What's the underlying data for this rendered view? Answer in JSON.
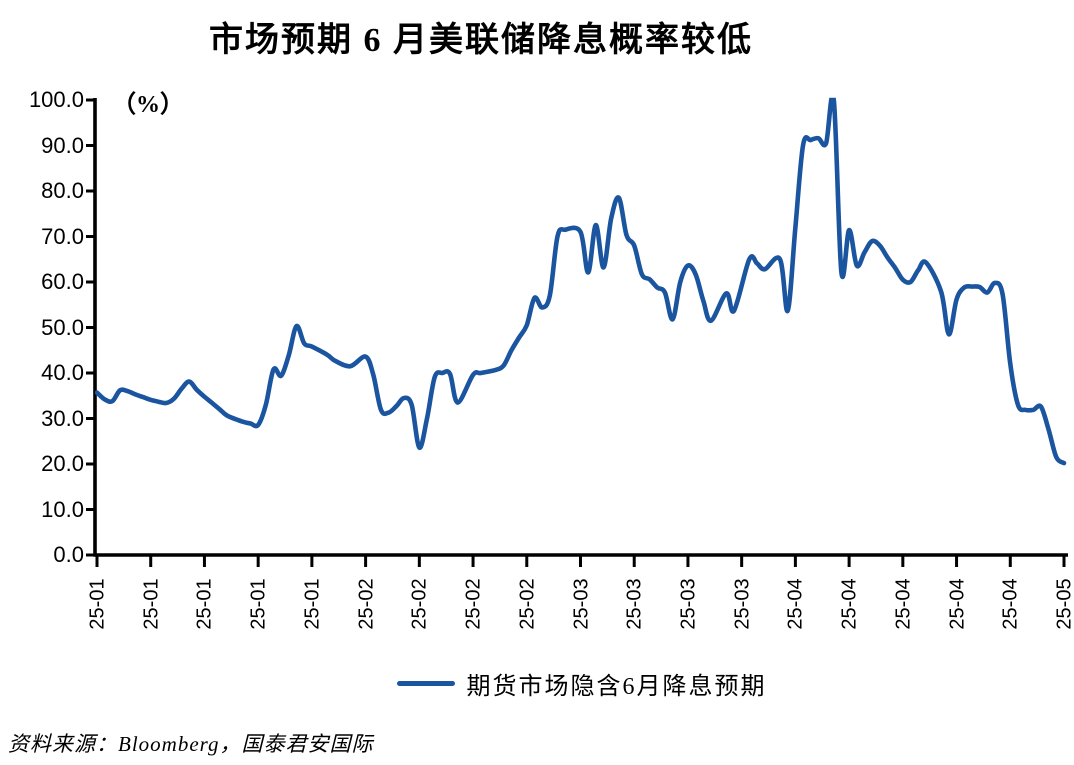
{
  "title": "市场预期 6 月美联储降息概率较低",
  "unit_label": "（%）",
  "legend": {
    "label": "期货市场隐含6月降息预期",
    "line_color": "#1B55A0"
  },
  "source": "资料来源：Bloomberg，国泰君安国际",
  "chart_data": {
    "type": "line",
    "title": "市场预期 6 月美联储降息概率较低",
    "xlabel": "",
    "ylabel": "（%）",
    "ylim": [
      0,
      100
    ],
    "ytick_step": 10,
    "ytick_labels": [
      "0.0",
      "10.0",
      "20.0",
      "30.0",
      "40.0",
      "50.0",
      "60.0",
      "70.0",
      "80.0",
      "90.0",
      "100.0"
    ],
    "grid": false,
    "legend_position": "bottom",
    "x_range": [
      "2025-01-01",
      "2025-05-08"
    ],
    "xticks": [
      {
        "date": "2025-01-01",
        "label": "25-01"
      },
      {
        "date": "2025-01-08",
        "label": "25-01"
      },
      {
        "date": "2025-01-15",
        "label": "25-01"
      },
      {
        "date": "2025-01-22",
        "label": "25-01"
      },
      {
        "date": "2025-01-29",
        "label": "25-01"
      },
      {
        "date": "2025-02-05",
        "label": "25-02"
      },
      {
        "date": "2025-02-12",
        "label": "25-02"
      },
      {
        "date": "2025-02-19",
        "label": "25-02"
      },
      {
        "date": "2025-02-26",
        "label": "25-02"
      },
      {
        "date": "2025-03-05",
        "label": "25-03"
      },
      {
        "date": "2025-03-12",
        "label": "25-03"
      },
      {
        "date": "2025-03-19",
        "label": "25-03"
      },
      {
        "date": "2025-03-26",
        "label": "25-03"
      },
      {
        "date": "2025-04-02",
        "label": "25-04"
      },
      {
        "date": "2025-04-09",
        "label": "25-04"
      },
      {
        "date": "2025-04-16",
        "label": "25-04"
      },
      {
        "date": "2025-04-23",
        "label": "25-04"
      },
      {
        "date": "2025-04-30",
        "label": "25-04"
      },
      {
        "date": "2025-05-07",
        "label": "25-05"
      }
    ],
    "series": [
      {
        "name": "期货市场隐含6月降息预期",
        "color": "#1B55A0",
        "points": [
          [
            "2025-01-01",
            35.7
          ],
          [
            "2025-01-02",
            34.2
          ],
          [
            "2025-01-03",
            33.8
          ],
          [
            "2025-01-04",
            36.2
          ],
          [
            "2025-01-05",
            36.0
          ],
          [
            "2025-01-06",
            35.3
          ],
          [
            "2025-01-07",
            34.7
          ],
          [
            "2025-01-08",
            34.1
          ],
          [
            "2025-01-09",
            33.7
          ],
          [
            "2025-01-10",
            33.4
          ],
          [
            "2025-01-11",
            34.3
          ],
          [
            "2025-01-12",
            36.5
          ],
          [
            "2025-01-13",
            38.1
          ],
          [
            "2025-01-14",
            36.3
          ],
          [
            "2025-01-15",
            34.8
          ],
          [
            "2025-01-16",
            33.4
          ],
          [
            "2025-01-17",
            32.0
          ],
          [
            "2025-01-18",
            30.6
          ],
          [
            "2025-01-20",
            29.3
          ],
          [
            "2025-01-21",
            28.9
          ],
          [
            "2025-01-22",
            28.6
          ],
          [
            "2025-01-23",
            33.0
          ],
          [
            "2025-01-24",
            40.8
          ],
          [
            "2025-01-25",
            39.4
          ],
          [
            "2025-01-26",
            44.0
          ],
          [
            "2025-01-27",
            50.3
          ],
          [
            "2025-01-28",
            46.5
          ],
          [
            "2025-01-29",
            45.8
          ],
          [
            "2025-01-31",
            44.0
          ],
          [
            "2025-02-01",
            42.7
          ],
          [
            "2025-02-03",
            41.5
          ],
          [
            "2025-02-05",
            43.6
          ],
          [
            "2025-02-06",
            39.6
          ],
          [
            "2025-02-07",
            31.9
          ],
          [
            "2025-02-08",
            31.3
          ],
          [
            "2025-02-09",
            32.7
          ],
          [
            "2025-02-10",
            34.5
          ],
          [
            "2025-02-11",
            33.0
          ],
          [
            "2025-02-12",
            23.6
          ],
          [
            "2025-02-13",
            30.0
          ],
          [
            "2025-02-14",
            39.1
          ],
          [
            "2025-02-15",
            40.0
          ],
          [
            "2025-02-16",
            39.8
          ],
          [
            "2025-02-17",
            33.5
          ],
          [
            "2025-02-19",
            39.6
          ],
          [
            "2025-02-20",
            40.0
          ],
          [
            "2025-02-22",
            40.7
          ],
          [
            "2025-02-23",
            41.7
          ],
          [
            "2025-02-24",
            45.0
          ],
          [
            "2025-02-25",
            47.8
          ],
          [
            "2025-02-26",
            50.5
          ],
          [
            "2025-02-27",
            56.5
          ],
          [
            "2025-02-28",
            54.4
          ],
          [
            "2025-03-01",
            57.0
          ],
          [
            "2025-03-02",
            70.0
          ],
          [
            "2025-03-03",
            71.5
          ],
          [
            "2025-03-05",
            71.0
          ],
          [
            "2025-03-06",
            62.1
          ],
          [
            "2025-03-07",
            72.5
          ],
          [
            "2025-03-08",
            63.2
          ],
          [
            "2025-03-09",
            74.0
          ],
          [
            "2025-03-10",
            78.5
          ],
          [
            "2025-03-11",
            70.3
          ],
          [
            "2025-03-12",
            68.0
          ],
          [
            "2025-03-13",
            61.7
          ],
          [
            "2025-03-14",
            60.6
          ],
          [
            "2025-03-15",
            58.8
          ],
          [
            "2025-03-16",
            57.7
          ],
          [
            "2025-03-17",
            51.8
          ],
          [
            "2025-03-18",
            60.0
          ],
          [
            "2025-03-19",
            63.6
          ],
          [
            "2025-03-20",
            61.7
          ],
          [
            "2025-03-21",
            55.9
          ],
          [
            "2025-03-22",
            51.5
          ],
          [
            "2025-03-24",
            57.5
          ],
          [
            "2025-03-25",
            53.7
          ],
          [
            "2025-03-27",
            65.0
          ],
          [
            "2025-03-28",
            64.1
          ],
          [
            "2025-03-29",
            62.8
          ],
          [
            "2025-03-31",
            65.0
          ],
          [
            "2025-04-01",
            53.7
          ],
          [
            "2025-04-02",
            72.0
          ],
          [
            "2025-04-03",
            90.1
          ],
          [
            "2025-04-04",
            91.2
          ],
          [
            "2025-04-05",
            91.6
          ],
          [
            "2025-04-06",
            90.5
          ],
          [
            "2025-04-07",
            100.0
          ],
          [
            "2025-04-08",
            62.1
          ],
          [
            "2025-04-09",
            71.4
          ],
          [
            "2025-04-10",
            63.6
          ],
          [
            "2025-04-11",
            66.5
          ],
          [
            "2025-04-12",
            69.0
          ],
          [
            "2025-04-13",
            68.0
          ],
          [
            "2025-04-14",
            65.4
          ],
          [
            "2025-04-15",
            63.1
          ],
          [
            "2025-04-16",
            60.5
          ],
          [
            "2025-04-17",
            60.0
          ],
          [
            "2025-04-18",
            62.6
          ],
          [
            "2025-04-19",
            64.3
          ],
          [
            "2025-04-21",
            57.8
          ],
          [
            "2025-04-22",
            48.5
          ],
          [
            "2025-04-23",
            56.2
          ],
          [
            "2025-04-24",
            58.8
          ],
          [
            "2025-04-25",
            59.0
          ],
          [
            "2025-04-26",
            58.9
          ],
          [
            "2025-04-27",
            57.7
          ],
          [
            "2025-04-28",
            59.8
          ],
          [
            "2025-04-29",
            57.3
          ],
          [
            "2025-04-30",
            42.0
          ],
          [
            "2025-05-01",
            33.0
          ],
          [
            "2025-05-02",
            31.9
          ],
          [
            "2025-05-03",
            31.9
          ],
          [
            "2025-05-04",
            32.6
          ],
          [
            "2025-05-05",
            27.5
          ],
          [
            "2025-05-06",
            21.5
          ],
          [
            "2025-05-07",
            20.2
          ]
        ]
      }
    ],
    "source": "资料来源：Bloomberg，国泰君安国际"
  }
}
